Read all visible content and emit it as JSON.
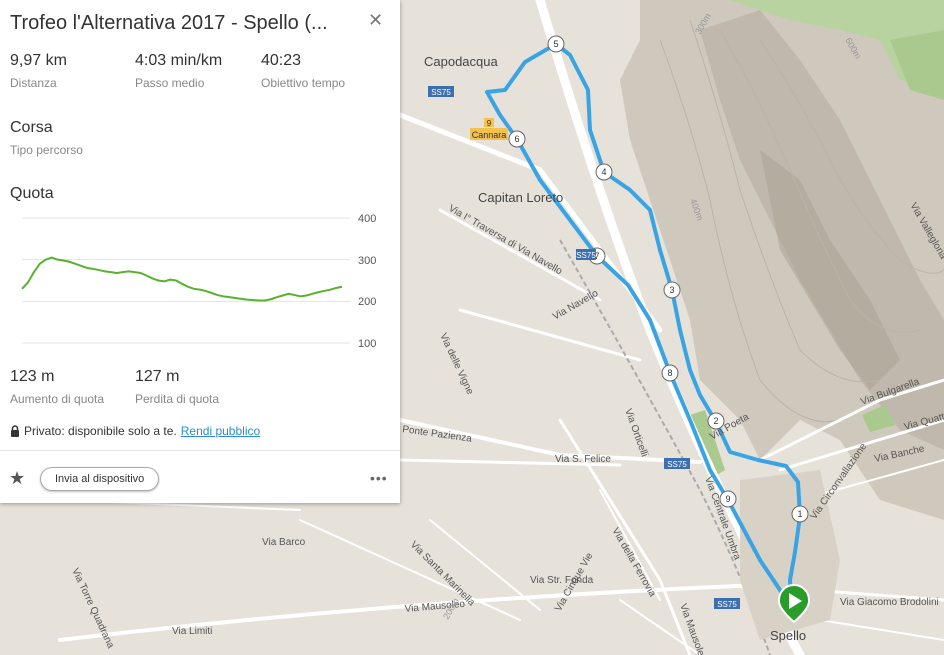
{
  "route": {
    "title": "Trofeo l'Alternativa 2017 - Spello (...",
    "close_icon": "close-icon",
    "route_color": "#3aa3e3",
    "elevation_color": "#5ab02f",
    "stats": [
      {
        "value": "9,97 km",
        "label": "Distanza"
      },
      {
        "value": "4:03 min/km",
        "label": "Passo medio"
      },
      {
        "value": "40:23",
        "label": "Obiettivo tempo"
      }
    ],
    "type_value": "Corsa",
    "type_label": "Tipo percorso",
    "elevation_title": "Quota",
    "elevation_ticks": [
      "400",
      "300",
      "200",
      "100"
    ],
    "gain": {
      "value": "123 m",
      "label": "Aumento di quota"
    },
    "loss": {
      "value": "127 m",
      "label": "Perdita di quota"
    },
    "privacy_text": "Privato: disponibile solo a te.",
    "privacy_link": "Rendi pubblico",
    "send_button": "Invia al dispositivo",
    "more_icon": "more-icon",
    "favorite_icon": "star-icon",
    "lock_icon": "lock-icon"
  },
  "chart_data": {
    "type": "area",
    "title": "Quota",
    "ylim": [
      100,
      400
    ],
    "yticks": [
      400,
      300,
      200,
      100
    ],
    "values": [
      230,
      245,
      270,
      290,
      300,
      305,
      300,
      298,
      295,
      290,
      285,
      280,
      278,
      275,
      272,
      270,
      268,
      270,
      272,
      270,
      268,
      262,
      255,
      250,
      248,
      252,
      250,
      242,
      235,
      230,
      228,
      225,
      220,
      215,
      212,
      210,
      208,
      206,
      204,
      203,
      202,
      202,
      205,
      210,
      214,
      218,
      215,
      212,
      214,
      218,
      222,
      225,
      228,
      232,
      235
    ]
  },
  "map": {
    "labels": {
      "capodacqua": "Capodacqua",
      "capitan_loreto": "Capitan Loreto",
      "spello": "Spello",
      "cannara": "Cannara",
      "shield9": "9",
      "ss75_1": "SS75",
      "ss75_2": "SS75",
      "ss75_3": "SS75",
      "ss75_4": "SS75",
      "via_navello": "Via Navello",
      "via_traversa": "Via I° Traversa di Via Navello",
      "via_vigne": "Via delle Vigne",
      "via_felice": "Via S. Felice",
      "ponte_pazienza": "Ponte Pazienza",
      "via_orticelli": "Via Orticelli",
      "via_poeta": "Via Poeta",
      "via_barco": "Via Barco",
      "via_torre": "Via Torre Quadrana",
      "via_santa": "Via Santa Marinella",
      "via_str_fonda": "Via Str. Fonda",
      "via_ferrovia": "Via della Ferrovia",
      "via_mausoleo1": "Via Mausoleo",
      "via_mausoleo2": "Via Mausoleo",
      "via_limiti": "Via Limiti",
      "via_cinque": "Via Cinque Vie",
      "via_circonvallazione": "Via Circonvallazione",
      "via_banche": "Via Banche",
      "via_quattro": "Via Quattro",
      "via_bulgarella": "Via Bulgarella",
      "via_brodolini": "Via Giacomo Brodolini",
      "via_umbria": "Via Centrale Umbra",
      "via_valle": "Via Vallegloria",
      "c400": "400m",
      "c600": "600m",
      "c300": "300m",
      "c200": "200m"
    },
    "markers": [
      "1",
      "2",
      "3",
      "4",
      "5",
      "6",
      "7",
      "8",
      "9"
    ]
  }
}
